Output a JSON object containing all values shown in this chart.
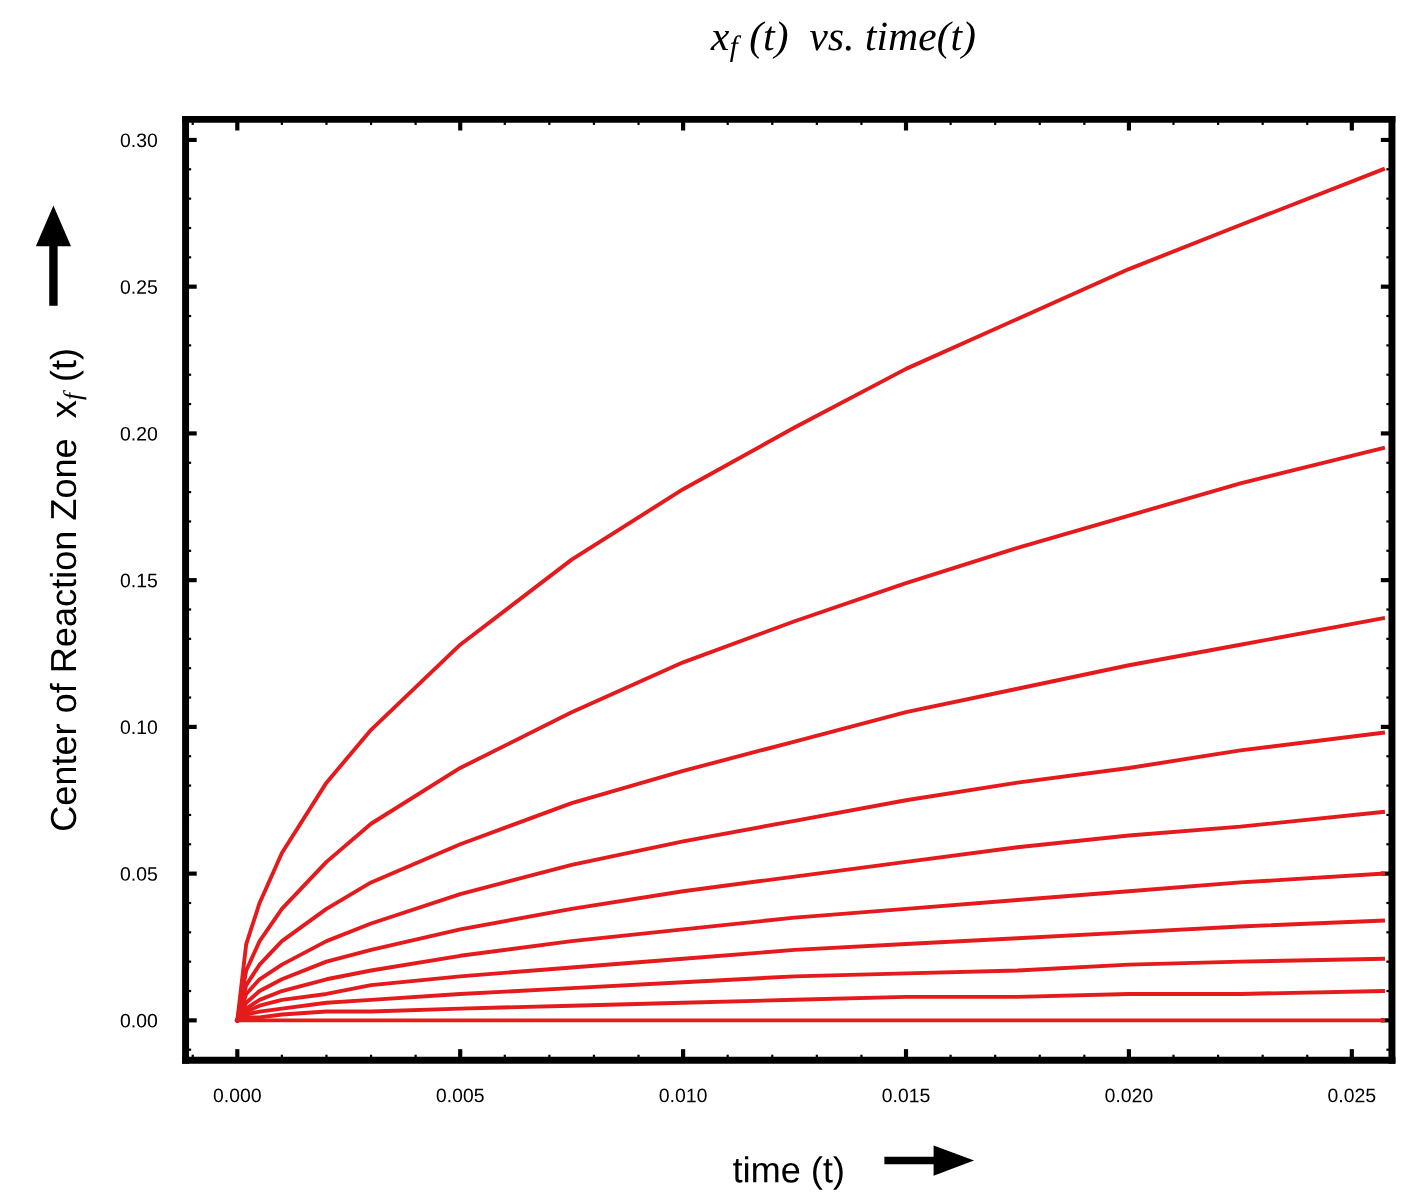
{
  "chart_data": {
    "type": "line",
    "title": "x$_{f}$ (t)  vs. time(t)",
    "xlabel": "time (t)",
    "ylabel": "Center of Reaction Zone  x$_{f}$ (t)",
    "x": [
      0,
      0.0002,
      0.0005,
      0.001,
      0.002,
      0.003,
      0.005,
      0.0075,
      0.01,
      0.0125,
      0.015,
      0.0175,
      0.02,
      0.0225,
      0.0257
    ],
    "series": [
      {
        "color": "#e41a1c",
        "values": [
          0,
          0.026,
          0.04,
          0.057,
          0.081,
          0.099,
          0.128,
          0.157,
          0.181,
          0.202,
          0.222,
          0.239,
          0.256,
          0.271,
          0.29
        ]
      },
      {
        "color": "#e41a1c",
        "values": [
          0,
          0.017,
          0.027,
          0.038,
          0.054,
          0.067,
          0.086,
          0.105,
          0.122,
          0.136,
          0.149,
          0.161,
          0.172,
          0.183,
          0.195
        ]
      },
      {
        "color": "#e41a1c",
        "values": [
          0,
          0.012,
          0.019,
          0.027,
          0.038,
          0.047,
          0.06,
          0.074,
          0.085,
          0.095,
          0.105,
          0.113,
          0.121,
          0.128,
          0.137
        ]
      },
      {
        "color": "#e41a1c",
        "values": [
          0,
          0.009,
          0.014,
          0.019,
          0.027,
          0.033,
          0.043,
          0.053,
          0.061,
          0.068,
          0.075,
          0.081,
          0.086,
          0.092,
          0.098
        ]
      },
      {
        "color": "#e41a1c",
        "values": [
          0,
          0.006,
          0.01,
          0.014,
          0.02,
          0.024,
          0.031,
          0.038,
          0.044,
          0.049,
          0.054,
          0.059,
          0.063,
          0.066,
          0.071
        ]
      },
      {
        "color": "#e41a1c",
        "values": [
          0,
          0.004,
          0.007,
          0.01,
          0.014,
          0.017,
          0.022,
          0.027,
          0.031,
          0.035,
          0.038,
          0.041,
          0.044,
          0.047,
          0.05
        ]
      },
      {
        "color": "#e41a1c",
        "values": [
          0,
          0.003,
          0.005,
          0.007,
          0.009,
          0.012,
          0.015,
          0.018,
          0.021,
          0.024,
          0.026,
          0.028,
          0.03,
          0.032,
          0.034
        ]
      },
      {
        "color": "#e41a1c",
        "values": [
          0,
          0.002,
          0.003,
          0.004,
          0.006,
          0.007,
          0.009,
          0.011,
          0.013,
          0.015,
          0.016,
          0.017,
          0.019,
          0.02,
          0.021
        ]
      },
      {
        "color": "#e41a1c",
        "values": [
          0,
          0.001,
          0.001,
          0.002,
          0.003,
          0.003,
          0.004,
          0.005,
          0.006,
          0.007,
          0.008,
          0.008,
          0.009,
          0.009,
          0.01
        ]
      },
      {
        "color": "#e41a1c",
        "values": [
          0,
          0,
          0,
          0,
          0,
          0,
          0,
          0,
          0,
          0,
          0,
          0,
          0,
          0,
          0
        ]
      }
    ],
    "xlim": [
      -0.00116,
      0.0259
    ],
    "ylim": [
      -0.0136,
      0.307
    ],
    "xticks": [
      {
        "value": 0,
        "label": "0.000"
      },
      0.005,
      {
        "value": 0.01,
        "label": "0.010"
      },
      0.015,
      {
        "value": 0.02,
        "label": "0.020"
      },
      0.025
    ],
    "yticks": [
      {
        "value": 0,
        "label": "0.00"
      },
      0.05,
      {
        "value": 0.1,
        "label": "0.10"
      },
      0.15,
      {
        "value": 0.2,
        "label": "0.20"
      },
      0.25,
      {
        "value": 0.3,
        "label": "0.30"
      }
    ],
    "grid": false,
    "legend": false,
    "marker": "none",
    "line_style": "solid"
  }
}
